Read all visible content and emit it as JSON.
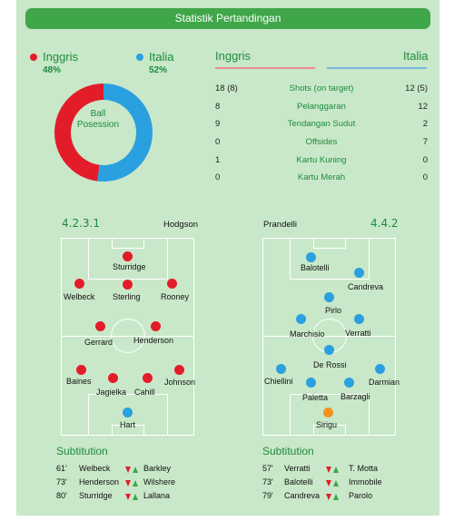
{
  "header": {
    "title": "Statistik Pertandingan"
  },
  "teams": {
    "home": {
      "name": "Inggris",
      "pct": "48%",
      "color": "#e31c2a"
    },
    "away": {
      "name": "Italia",
      "pct": "52%",
      "color": "#2aa0e0"
    }
  },
  "possession": {
    "label_line1": "Ball",
    "label_line2": "Posession",
    "home": 48,
    "away": 52
  },
  "stats": {
    "home_label": "Inggris",
    "away_label": "Italia",
    "rows": [
      {
        "home": "18 (8)",
        "label": "Shots (on target)",
        "away": "12 (5)"
      },
      {
        "home": "8",
        "label": "Pelanggaran",
        "away": "12"
      },
      {
        "home": "9",
        "label": "Tendangan Sudut",
        "away": "2"
      },
      {
        "home": "0",
        "label": "Offsides",
        "away": "7"
      },
      {
        "home": "1",
        "label": "Kartu Kuning",
        "away": "0"
      },
      {
        "home": "0",
        "label": "Kartu Merah",
        "away": "0"
      }
    ]
  },
  "lineups": {
    "home": {
      "formation": "4.2.3.1",
      "coach": "Hodgson",
      "players": [
        "Sturridge",
        "Welbeck",
        "Sterling",
        "Rooney",
        "Gerrard",
        "Henderson",
        "Baines",
        "Jagielka",
        "Cahill",
        "Johnson",
        "Hart"
      ]
    },
    "away": {
      "formation": "4.4.2",
      "coach": "Prandelli",
      "players": [
        "Balotelli",
        "Candreva",
        "Pirlo",
        "Marchisio",
        "Verratti",
        "De Rossi",
        "Chiellini",
        "Paletta",
        "Barzagli",
        "Darmian",
        "Sirigu"
      ]
    }
  },
  "substitutions": {
    "home": {
      "title": "Subtitution",
      "rows": [
        {
          "minute": "61'",
          "out": "Welbeck",
          "in": "Barkley"
        },
        {
          "minute": "73'",
          "out": "Henderson",
          "in": "Wilshere"
        },
        {
          "minute": "80'",
          "out": "Sturridge",
          "in": "Lallana"
        }
      ]
    },
    "away": {
      "title": "Subtitution",
      "rows": [
        {
          "minute": "57'",
          "out": "Verratti",
          "in": "T. Motta"
        },
        {
          "minute": "73'",
          "out": "Balotelli",
          "in": "Immobile"
        },
        {
          "minute": "79'",
          "out": "Candreva",
          "in": "Parolo"
        }
      ]
    }
  }
}
